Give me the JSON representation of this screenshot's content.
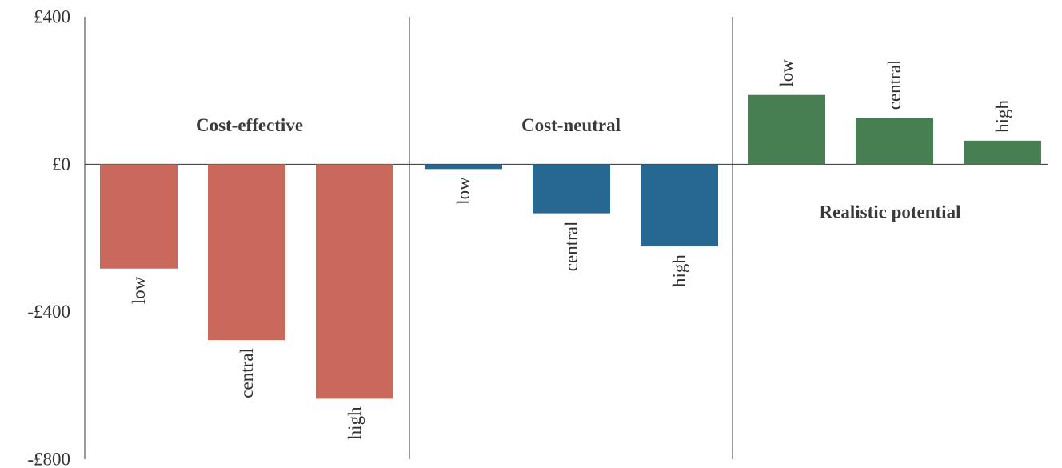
{
  "chart_data": {
    "type": "bar",
    "ylim": [
      -800,
      400
    ],
    "y_ticks": [
      {
        "value": 400,
        "label": "£400"
      },
      {
        "value": 0,
        "label": "£0"
      },
      {
        "value": -400,
        "label": "-£400"
      },
      {
        "value": -800,
        "label": "-£800"
      }
    ],
    "grid": false,
    "groups": [
      {
        "name": "Cost-effective",
        "color": "#c8695b",
        "bars": [
          {
            "label": "low",
            "value": -283
          },
          {
            "label": "central",
            "value": -477
          },
          {
            "label": "high",
            "value": -636
          }
        ]
      },
      {
        "name": "Cost-neutral",
        "color": "#276893",
        "bars": [
          {
            "label": "low",
            "value": -13
          },
          {
            "label": "central",
            "value": -133
          },
          {
            "label": "high",
            "value": -223
          }
        ]
      },
      {
        "name": "Realistic potential",
        "color": "#477e52",
        "bars": [
          {
            "label": "low",
            "value": 188
          },
          {
            "label": "central",
            "value": 126
          },
          {
            "label": "high",
            "value": 64
          }
        ]
      }
    ]
  }
}
